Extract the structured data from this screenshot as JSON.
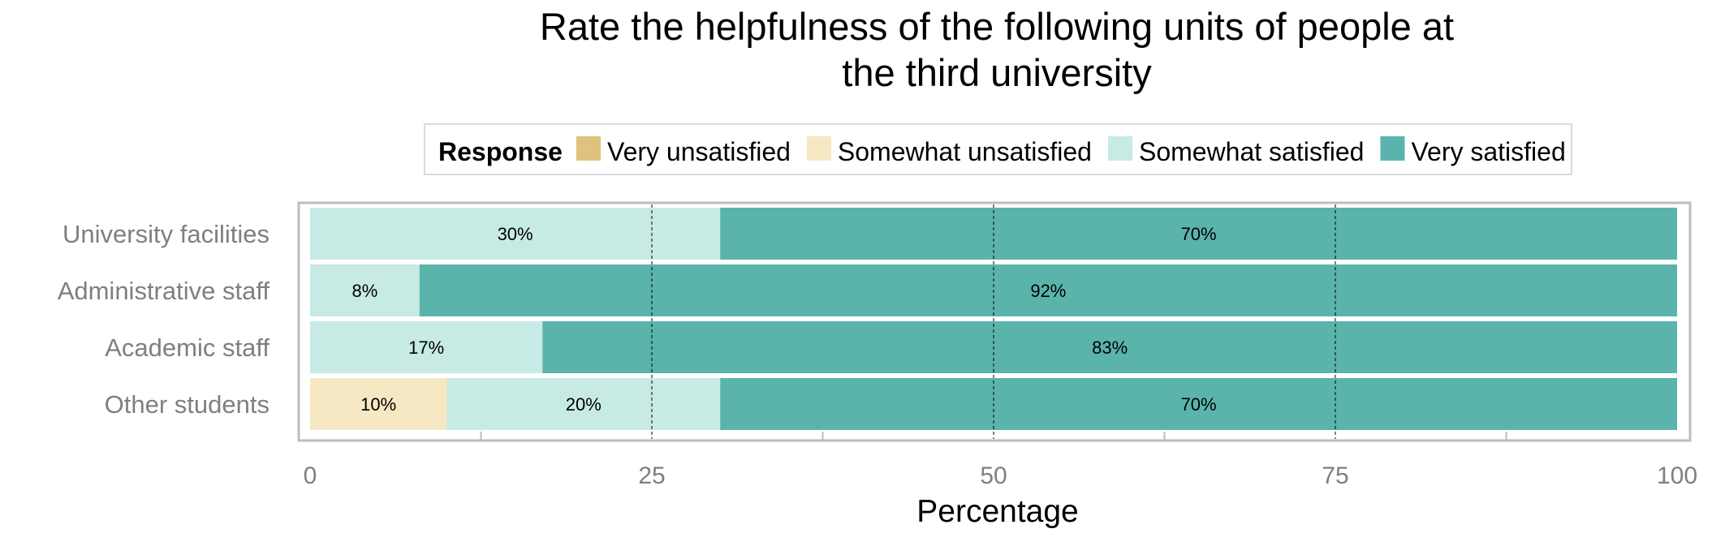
{
  "chart_data": {
    "type": "bar",
    "orientation": "horizontal",
    "stacked": true,
    "title_lines": [
      "Rate the helpfulness of the following units of people at",
      "the third university"
    ],
    "xlabel": "Percentage",
    "ylabel": "",
    "xlim": [
      0,
      100
    ],
    "x_ticks": [
      0,
      25,
      50,
      75,
      100
    ],
    "x_tick_labels": [
      "0",
      "25",
      "50",
      "75",
      "100"
    ],
    "grid": "dashed vertical major",
    "legend": {
      "title": "Response",
      "placement": "top",
      "entries": [
        "Very unsatisfied",
        "Somewhat unsatisfied",
        "Somewhat satisfied",
        "Very satisfied"
      ]
    },
    "categories": [
      "University facilities",
      "Administrative staff",
      "Academic staff",
      "Other students"
    ],
    "series": [
      {
        "name": "Very unsatisfied",
        "color": "#dfc27d",
        "values": [
          0,
          0,
          0,
          0
        ],
        "labels": [
          "",
          "",
          "",
          ""
        ]
      },
      {
        "name": "Somewhat unsatisfied",
        "color": "#f6e8c3",
        "values": [
          0,
          0,
          0,
          10
        ],
        "labels": [
          "",
          "",
          "",
          "10%"
        ]
      },
      {
        "name": "Somewhat satisfied",
        "color": "#c7eae5",
        "values": [
          30,
          8,
          17,
          20
        ],
        "labels": [
          "30%",
          "8%",
          "17%",
          "20%"
        ]
      },
      {
        "name": "Very satisfied",
        "color": "#5ab4ac",
        "values": [
          70,
          92,
          83,
          70
        ],
        "labels": [
          "70%",
          "92%",
          "83%",
          "70%"
        ]
      }
    ]
  }
}
